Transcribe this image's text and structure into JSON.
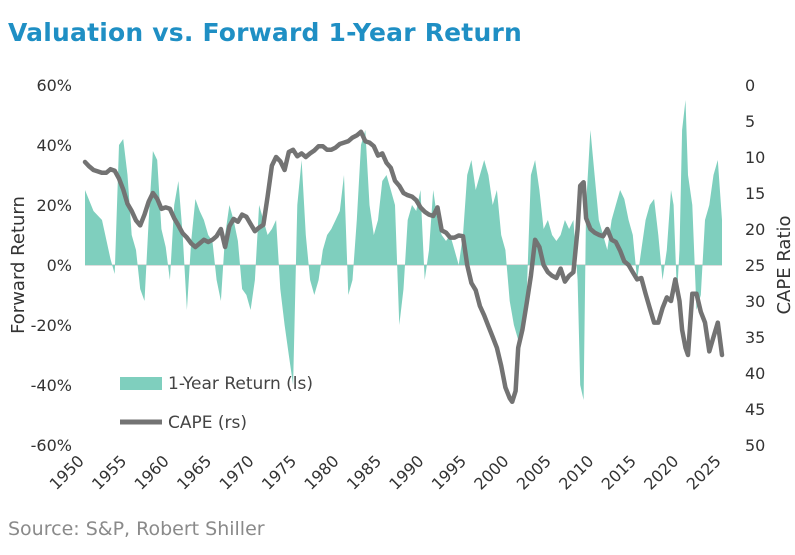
{
  "title": "Valuation vs. Forward 1-Year Return",
  "source": "Source: S&P, Robert Shiller",
  "colors": {
    "title": "#1f8fc4",
    "return_area": "#7fcfbe",
    "cape_line": "#737373",
    "text": "#333333"
  },
  "chart_data": {
    "type": "area",
    "title": "Valuation vs. Forward 1-Year Return",
    "xlabel": "",
    "ylabel": "Forward Return",
    "y2label": "CAPE Ratio",
    "xlim": [
      1950,
      2025
    ],
    "ylim": [
      -60,
      60
    ],
    "y2lim": [
      0,
      50
    ],
    "y2_inverted": true,
    "x_ticks": [
      "1950",
      "1955",
      "1960",
      "1965",
      "1970",
      "1975",
      "1980",
      "1985",
      "1990",
      "1995",
      "2000",
      "2005",
      "2010",
      "2015",
      "2020",
      "2025"
    ],
    "y_ticks": [
      "60%",
      "40%",
      "20%",
      "0%",
      "-20%",
      "-40%",
      "-60%"
    ],
    "y2_ticks": [
      "0",
      "5",
      "10",
      "15",
      "20",
      "25",
      "30",
      "35",
      "40",
      "45",
      "50"
    ],
    "legend_position": "bottom-left",
    "series": [
      {
        "name": "1-Year Return (ls)",
        "axis": "left",
        "type": "area",
        "x": [
          1950,
          1951,
          1952,
          1953,
          1953.5,
          1954,
          1954.5,
          1955,
          1955.5,
          1956,
          1956.5,
          1957,
          1957.5,
          1958,
          1958.5,
          1959,
          1959.5,
          1960,
          1960.5,
          1961,
          1961.5,
          1962,
          1962.5,
          1963,
          1963.5,
          1964,
          1964.5,
          1965,
          1965.5,
          1966,
          1966.5,
          1967,
          1967.5,
          1968,
          1968.5,
          1969,
          1969.5,
          1970,
          1970.5,
          1971,
          1971.5,
          1972,
          1972.5,
          1973,
          1973.5,
          1974,
          1974.5,
          1975,
          1975.5,
          1976,
          1976.5,
          1977,
          1977.5,
          1978,
          1978.5,
          1979,
          1979.5,
          1980,
          1980.5,
          1981,
          1981.5,
          1982,
          1982.5,
          1983,
          1983.5,
          1984,
          1984.5,
          1985,
          1985.5,
          1986,
          1986.5,
          1987,
          1987.5,
          1988,
          1988.5,
          1989,
          1989.5,
          1990,
          1990.5,
          1991,
          1991.5,
          1992,
          1992.5,
          1993,
          1993.5,
          1994,
          1994.5,
          1995,
          1995.5,
          1996,
          1996.5,
          1997,
          1997.5,
          1998,
          1998.5,
          1999,
          1999.5,
          2000,
          2000.5,
          2001,
          2001.5,
          2002,
          2002.5,
          2003,
          2003.5,
          2004,
          2004.5,
          2005,
          2005.5,
          2006,
          2006.5,
          2007,
          2007.5,
          2008,
          2008.3,
          2008.7,
          2009,
          2009.5,
          2010,
          2010.5,
          2011,
          2011.5,
          2012,
          2012.5,
          2013,
          2013.5,
          2014,
          2014.5,
          2015,
          2015.5,
          2016,
          2016.5,
          2017,
          2017.5,
          2018,
          2018.5,
          2019,
          2019.3,
          2019.7,
          2020,
          2020.3,
          2020.7,
          2021,
          2021.5,
          2022,
          2022.5,
          2023,
          2023.5,
          2024,
          2024.5,
          2025
        ],
        "values": [
          25,
          18,
          15,
          2,
          -3,
          40,
          42,
          30,
          10,
          5,
          -8,
          -12,
          15,
          38,
          35,
          12,
          6,
          -5,
          20,
          28,
          10,
          -15,
          8,
          22,
          18,
          15,
          10,
          8,
          -5,
          -12,
          10,
          20,
          15,
          8,
          -8,
          -10,
          -15,
          -5,
          20,
          15,
          10,
          12,
          15,
          -8,
          -20,
          -30,
          -40,
          20,
          35,
          10,
          -5,
          -10,
          -5,
          5,
          10,
          12,
          15,
          18,
          30,
          -10,
          -5,
          15,
          40,
          45,
          20,
          10,
          15,
          28,
          30,
          25,
          20,
          -20,
          -8,
          15,
          20,
          18,
          25,
          -5,
          5,
          25,
          15,
          10,
          8,
          10,
          5,
          0,
          10,
          30,
          35,
          25,
          30,
          35,
          30,
          20,
          25,
          10,
          5,
          -12,
          -20,
          -25,
          -20,
          -10,
          30,
          35,
          25,
          12,
          15,
          10,
          8,
          10,
          15,
          12,
          15,
          -5,
          -40,
          -45,
          20,
          45,
          30,
          15,
          10,
          5,
          15,
          20,
          25,
          22,
          15,
          10,
          -5,
          5,
          15,
          20,
          22,
          10,
          -5,
          5,
          25,
          20,
          -10,
          5,
          45,
          55,
          30,
          20,
          -15,
          -10,
          15,
          20,
          30,
          35,
          15
        ]
      },
      {
        "name": "CAPE (rs)",
        "axis": "right",
        "type": "line",
        "x": [
          1950,
          1950.5,
          1951,
          1951.5,
          1952,
          1952.5,
          1953,
          1953.5,
          1954,
          1954.5,
          1955,
          1955.5,
          1956,
          1956.5,
          1957,
          1957.5,
          1958,
          1958.5,
          1959,
          1959.5,
          1960,
          1960.5,
          1961,
          1961.5,
          1962,
          1962.5,
          1963,
          1963.5,
          1964,
          1964.5,
          1965,
          1965.5,
          1966,
          1966.5,
          1967,
          1967.5,
          1968,
          1968.5,
          1969,
          1969.5,
          1970,
          1970.5,
          1971,
          1971.5,
          1972,
          1972.5,
          1973,
          1973.5,
          1974,
          1974.5,
          1975,
          1975.5,
          1976,
          1976.5,
          1977,
          1977.5,
          1978,
          1978.5,
          1979,
          1979.5,
          1980,
          1980.5,
          1981,
          1981.5,
          1982,
          1982.5,
          1983,
          1983.5,
          1984,
          1984.5,
          1985,
          1985.5,
          1986,
          1986.5,
          1987,
          1987.5,
          1988,
          1988.5,
          1989,
          1989.5,
          1990,
          1990.5,
          1991,
          1991.5,
          1992,
          1992.5,
          1993,
          1993.5,
          1994,
          1994.5,
          1995,
          1995.5,
          1996,
          1996.5,
          1997,
          1997.5,
          1998,
          1998.5,
          1999,
          1999.5,
          2000,
          2000.3,
          2000.7,
          2001,
          2001.5,
          2002,
          2002.5,
          2003,
          2003.5,
          2004,
          2004.5,
          2005,
          2005.5,
          2006,
          2006.5,
          2007,
          2007.5,
          2008,
          2008.3,
          2008.7,
          2009,
          2009.5,
          2010,
          2010.5,
          2011,
          2011.5,
          2012,
          2012.5,
          2013,
          2013.5,
          2014,
          2014.5,
          2015,
          2015.5,
          2016,
          2016.5,
          2017,
          2017.5,
          2018,
          2018.5,
          2019,
          2019.5,
          2020,
          2020.3,
          2020.7,
          2021,
          2021.5,
          2022,
          2022.5,
          2023,
          2023.5,
          2024,
          2024.5,
          2025
        ],
        "values": [
          10.7,
          11.3,
          11.8,
          12.0,
          12.2,
          12.2,
          11.7,
          11.9,
          13.0,
          14.5,
          16.5,
          17.5,
          18.8,
          19.5,
          18.0,
          16.2,
          15.0,
          15.8,
          17.2,
          17.0,
          17.2,
          18.5,
          19.5,
          20.6,
          21.2,
          22.0,
          22.5,
          22.0,
          21.5,
          21.8,
          21.5,
          21.0,
          20.0,
          22.5,
          19.6,
          18.6,
          19.0,
          18.0,
          18.3,
          19.3,
          20.3,
          19.8,
          19.4,
          15.5,
          11.2,
          10.0,
          10.6,
          11.8,
          9.3,
          9.0,
          9.9,
          9.5,
          10.0,
          9.5,
          9.1,
          8.5,
          8.5,
          9.0,
          9.0,
          8.7,
          8.2,
          8.0,
          7.8,
          7.3,
          7.0,
          6.5,
          7.8,
          8.0,
          8.5,
          9.8,
          9.5,
          10.8,
          11.5,
          13.3,
          14.0,
          15.0,
          15.3,
          15.5,
          16.0,
          17.0,
          17.6,
          18.0,
          18.2,
          17.0,
          20.2,
          20.5,
          21.2,
          21.2,
          20.9,
          21.0,
          25.0,
          27.5,
          28.5,
          30.7,
          32.0,
          33.5,
          35.0,
          36.5,
          39.0,
          42.0,
          43.5,
          44.0,
          42.5,
          36.5,
          34.0,
          30.3,
          26.5,
          21.5,
          22.5,
          25.0,
          26.0,
          26.5,
          26.8,
          25.5,
          27.3,
          26.5,
          26.0,
          20.0,
          14.0,
          13.5,
          18.5,
          20.0,
          20.5,
          20.8,
          21.0,
          20.0,
          21.5,
          21.8,
          23.0,
          24.5,
          25.0,
          26.0,
          27.0,
          26.8,
          29.0,
          31.0,
          33.0,
          33.0,
          31.0,
          29.5,
          30.0,
          27.0,
          30.0,
          34.0,
          36.5,
          37.5,
          29.0,
          29.0,
          31.5,
          33.0,
          37.0,
          35.0,
          33.0,
          37.5
        ]
      }
    ]
  },
  "legend": [
    {
      "label": "1-Year Return (ls)"
    },
    {
      "label": "CAPE (rs)"
    }
  ]
}
